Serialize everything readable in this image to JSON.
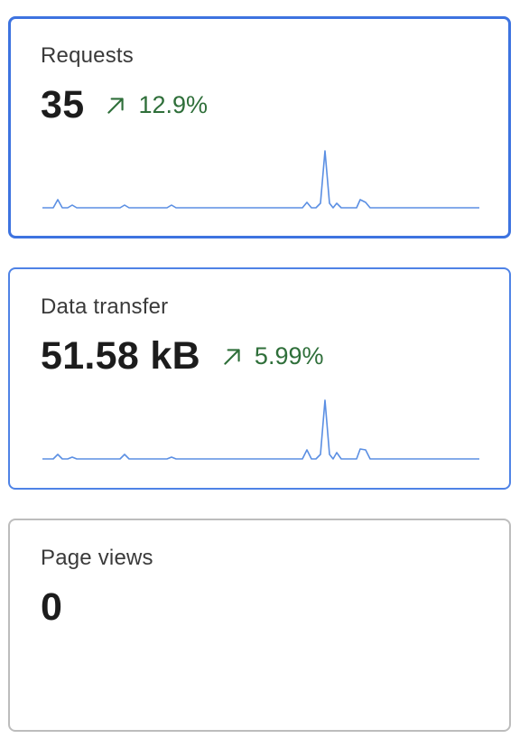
{
  "cards": [
    {
      "label": "Requests",
      "value": "35",
      "change": {
        "value": "12.9%",
        "direction": "up",
        "icon": "trend-up-arrow-icon",
        "color": "#2f6f3a"
      },
      "state": "selected",
      "sparkline_color": "#5b8fe3"
    },
    {
      "label": "Data transfer",
      "value": "51.58 kB",
      "change": {
        "value": "5.99%",
        "direction": "up",
        "icon": "trend-up-arrow-icon",
        "color": "#2f6f3a"
      },
      "state": "active",
      "sparkline_color": "#5b8fe3"
    },
    {
      "label": "Page views",
      "value": "0",
      "state": "inactive"
    }
  ]
}
